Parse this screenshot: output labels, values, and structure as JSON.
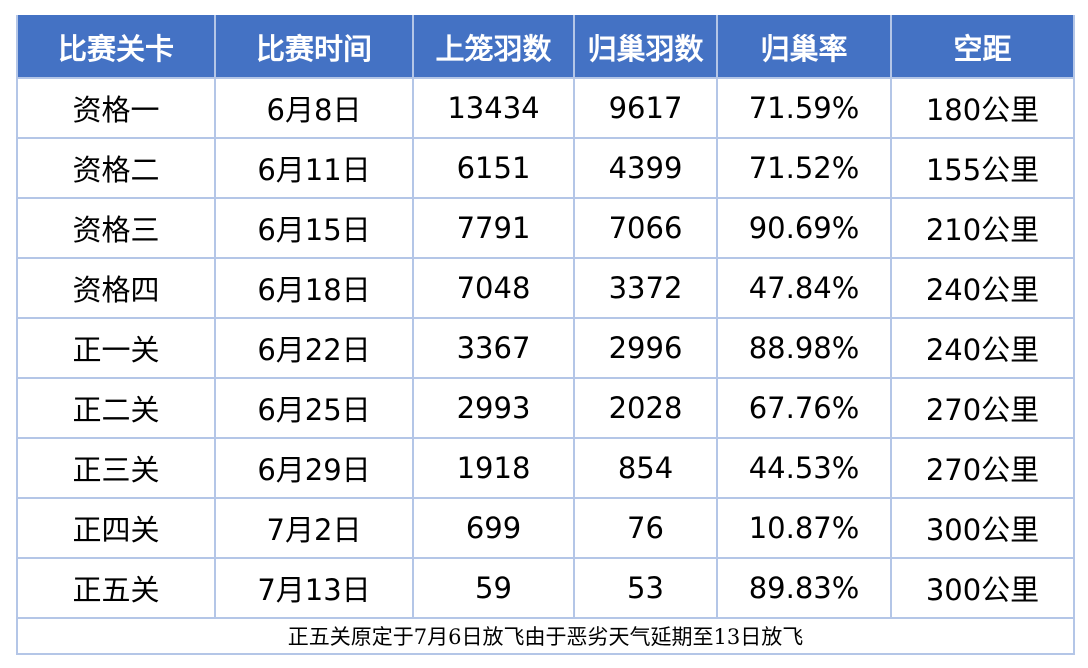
{
  "headers": [
    "比赛关卡",
    "比赛时间",
    "上笼羽数",
    "归巢羽数",
    "归巢率",
    "空距"
  ],
  "rows": [
    [
      "资格一",
      "6月8日",
      "13434",
      "9617",
      "71.59%",
      "180公里"
    ],
    [
      "资格二",
      "6月11日",
      "6151",
      "4399",
      "71.52%",
      "155公里"
    ],
    [
      "资格三",
      "6月15日",
      "7791",
      "7066",
      "90.69%",
      "210公里"
    ],
    [
      "资格四",
      "6月18日",
      "7048",
      "3372",
      "47.84%",
      "240公里"
    ],
    [
      "正一关",
      "6月22日",
      "3367",
      "2996",
      "88.98%",
      "240公里"
    ],
    [
      "正二关",
      "6月25日",
      "2993",
      "2028",
      "67.76%",
      "270公里"
    ],
    [
      "正三关",
      "6月29日",
      "1918",
      "854",
      "44.53%",
      "270公里"
    ],
    [
      "正四关",
      "7月2日",
      "699",
      "76",
      "10.87%",
      "300公里"
    ],
    [
      "正五关",
      "7月13日",
      "59",
      "53",
      "89.83%",
      "300公里"
    ]
  ],
  "note": "正五关原定于7月6日放飞由于恶劣天气延期至13日放飞",
  "colors": {
    "header_bg": "#4472C4",
    "grid": "#B4C6E7"
  }
}
